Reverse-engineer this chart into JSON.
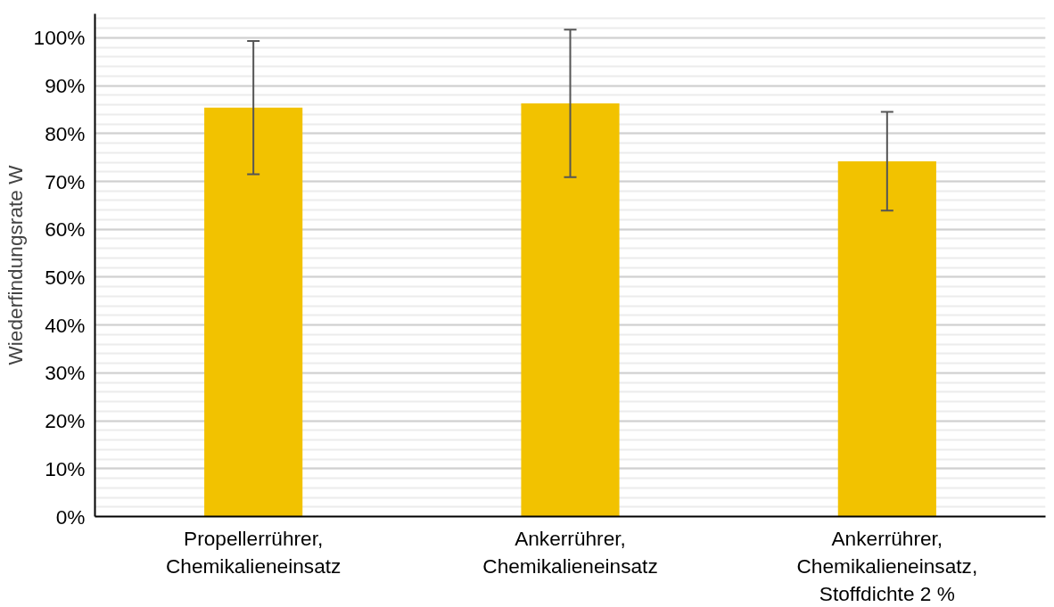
{
  "chart_data": {
    "type": "bar",
    "ylabel": "Wiederfindungsrate W",
    "categories": [
      "Propellerrührer, Chemikalieneinsatz",
      "Ankerrührer, Chemikalieneinsatz",
      "Ankerrührer, Chemikalieneinsatz, Stoffdichte 2 %"
    ],
    "values": [
      85.4,
      86.3,
      74.2
    ],
    "errors": [
      13.9,
      15.4,
      10.3
    ],
    "color": "#f2c200",
    "ylim": [
      0,
      105
    ],
    "yticks": [
      {
        "value": 0,
        "label": "0%"
      },
      {
        "value": 10,
        "label": "10%"
      },
      {
        "value": 20,
        "label": "20%"
      },
      {
        "value": 30,
        "label": "30%"
      },
      {
        "value": 40,
        "label": "40%"
      },
      {
        "value": 50,
        "label": "50%"
      },
      {
        "value": 60,
        "label": "60%"
      },
      {
        "value": 70,
        "label": "70%"
      },
      {
        "value": 80,
        "label": "80%"
      },
      {
        "value": 90,
        "label": "90%"
      },
      {
        "value": 100,
        "label": "100%"
      }
    ],
    "grid": "y"
  }
}
